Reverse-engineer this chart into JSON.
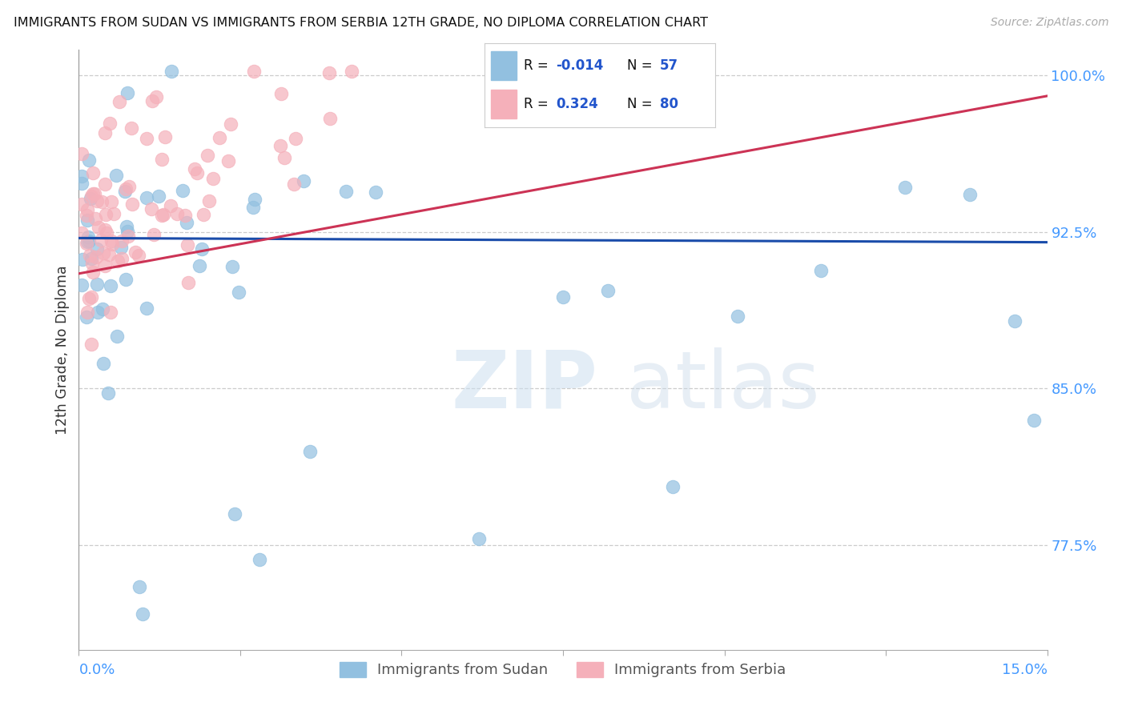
{
  "title": "IMMIGRANTS FROM SUDAN VS IMMIGRANTS FROM SERBIA 12TH GRADE, NO DIPLOMA CORRELATION CHART",
  "source": "Source: ZipAtlas.com",
  "ylabel": "12th Grade, No Diploma",
  "ytick_vals": [
    1.0,
    0.925,
    0.85,
    0.775
  ],
  "ytick_labels": [
    "100.0%",
    "92.5%",
    "85.0%",
    "77.5%"
  ],
  "xlim": [
    0.0,
    0.15
  ],
  "ylim": [
    0.725,
    1.012
  ],
  "sudan_R": "-0.014",
  "sudan_N": "57",
  "serbia_R": "0.324",
  "serbia_N": "80",
  "sudan_color": "#92c0e0",
  "serbia_color": "#f5b0ba",
  "sudan_line_color": "#1a4caa",
  "serbia_line_color": "#cc3355",
  "watermark_zip": "ZIP",
  "watermark_atlas": "atlas",
  "legend_sudan_label": "Immigrants from Sudan",
  "legend_serbia_label": "Immigrants from Serbia",
  "sudan_trendline_y_at_0": 0.922,
  "sudan_trendline_y_at_15": 0.92,
  "serbia_trendline_y_at_0": 0.905,
  "serbia_trendline_y_at_15": 0.99
}
